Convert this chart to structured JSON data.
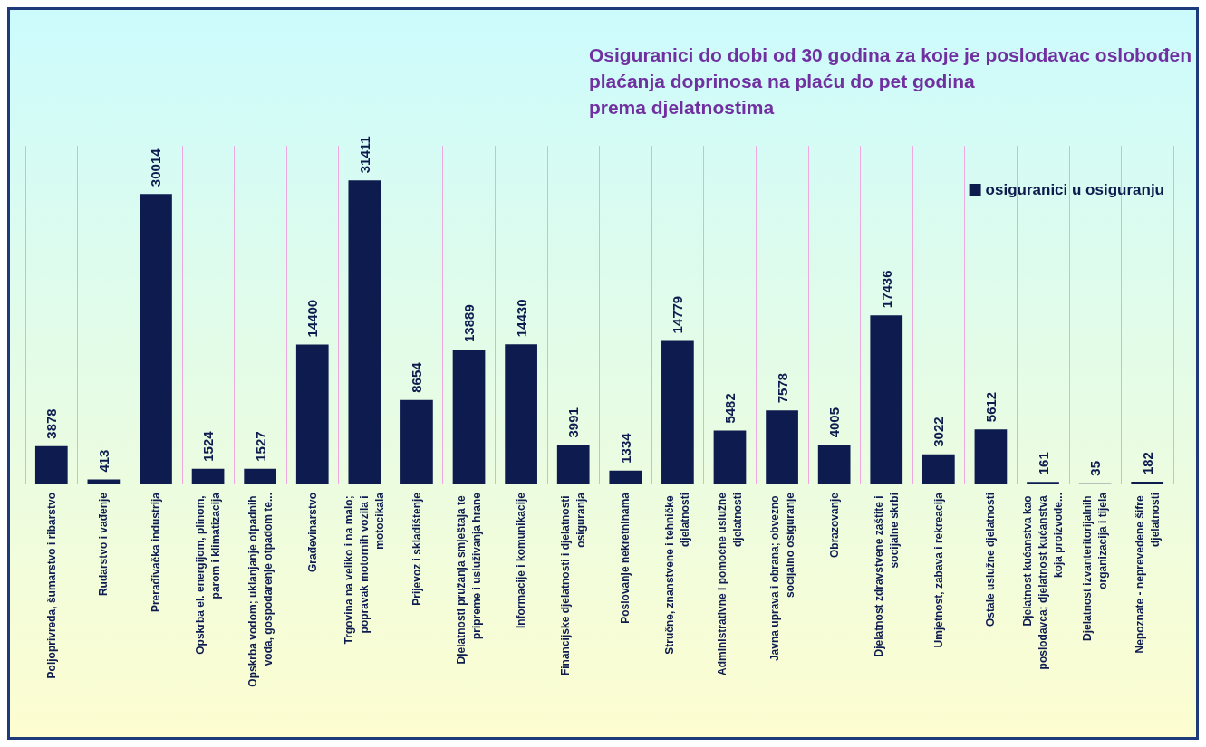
{
  "chart_data": {
    "type": "bar",
    "title": "Osiguranici do dobi od 30 godina za koje je poslodavac oslobođen\nplaćanja doprinosa na plaću do pet godina\nprema djelatnostima",
    "categories": [
      "Poljoprivreda, šumarstvo i ribarstvo",
      "Rudarstvo i vađenje",
      "Prerađivačka industrija",
      "Opskrba el. energijom, plinom, parom i klimatizacija",
      "Opskrba vodom; uklanjanje otpadnih voda, gospodarenje otpadom te...",
      "Građevinarstvo",
      "Trgovina na veliko i na malo; popravak motornih vozila i motocikala",
      "Prijevoz i skladištenje",
      "Djelatnosti pružanja smještaja te pripreme i usluživanja hrane",
      "Informacije i komunikacije",
      "Financijske djelatnosti i djelatnosti osiguranja",
      "Poslovanje nekretninama",
      "Stručne, znanstvene i tehničke djelatnosti",
      "Administrativne i pomoćne uslužne djelatnosti",
      "Javna uprava i obrana; obvezno socijalno osiguranje",
      "Obrazovanje",
      "Djelatnost zdravstvene zaštite i socijalne skrbi",
      "Umjetnost, zabava i rekreacija",
      "Ostale uslužne djelatnosti",
      "Djelatnost kućanstva kao poslodavca; djelatnost kućanstva koja proizvode...",
      "Djelatnost izvanteritorijalnih organizacija i tijela",
      "Nepoznate - neprevedene šifre djelatnosti"
    ],
    "series": [
      {
        "name": "osiguranici u osiguranju",
        "color": "#0d1b4f",
        "values": [
          3878,
          413,
          30014,
          1524,
          1527,
          14400,
          31411,
          8654,
          13889,
          14430,
          3991,
          1334,
          14779,
          5482,
          7578,
          4005,
          17436,
          3022,
          5612,
          161,
          35,
          182
        ]
      }
    ],
    "data_labels": true,
    "grid": "x",
    "legend": "top right"
  }
}
